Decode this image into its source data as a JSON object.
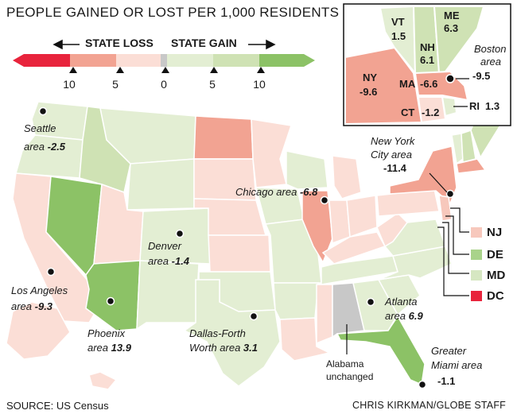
{
  "title": "PEOPLE GAINED OR LOST PER 1,000 RESIDENTS",
  "legend": {
    "loss_label": "STATE LOSS",
    "gain_label": "STATE GAIN",
    "ticks": [
      "10",
      "5",
      "0",
      "5",
      "10"
    ],
    "colors": {
      "strong_loss": "#e8243c",
      "loss": "#f2a392",
      "light_loss": "#fbded6",
      "neutral": "#c8c8c8",
      "light_gain": "#e3eed3",
      "gain": "#cfe2b4",
      "strong_gain": "#8cc266"
    }
  },
  "cities": [
    {
      "name": "Seattle area",
      "value": "-2.5"
    },
    {
      "name": "Denver area",
      "value": "-1.4"
    },
    {
      "name": "Chicago area",
      "value": "-6.8"
    },
    {
      "name": "New York City area",
      "value": "-11.4"
    },
    {
      "name": "Los Angeles area",
      "value": "-9.3"
    },
    {
      "name": "Phoenix area",
      "value": "13.9"
    },
    {
      "name": "Dallas-Forth Worth area",
      "value": "3.1"
    },
    {
      "name": "Atlanta area",
      "value": "6.9"
    },
    {
      "name": "Greater Miami area",
      "value": "-1.1"
    },
    {
      "name": "Boston area",
      "value": "-9.5"
    }
  ],
  "inset_states": [
    {
      "abbr": "VT",
      "value": "1.5"
    },
    {
      "abbr": "ME",
      "value": "6.3"
    },
    {
      "abbr": "NH",
      "value": "6.1"
    },
    {
      "abbr": "NY",
      "value": "-9.6"
    },
    {
      "abbr": "MA",
      "value": "-6.6"
    },
    {
      "abbr": "CT",
      "value": "-1.2"
    },
    {
      "abbr": "RI",
      "value": "1.3"
    }
  ],
  "small_states": [
    {
      "abbr": "NJ",
      "color": "#f7c8bc"
    },
    {
      "abbr": "DE",
      "color": "#a9d38a"
    },
    {
      "abbr": "MD",
      "color": "#d6e7c2"
    },
    {
      "abbr": "DC",
      "color": "#e8243c"
    }
  ],
  "alabama_note": "Alabama unchanged",
  "source": "SOURCE: US Census",
  "credit": "CHRIS KIRKMAN/GLOBE STAFF"
}
